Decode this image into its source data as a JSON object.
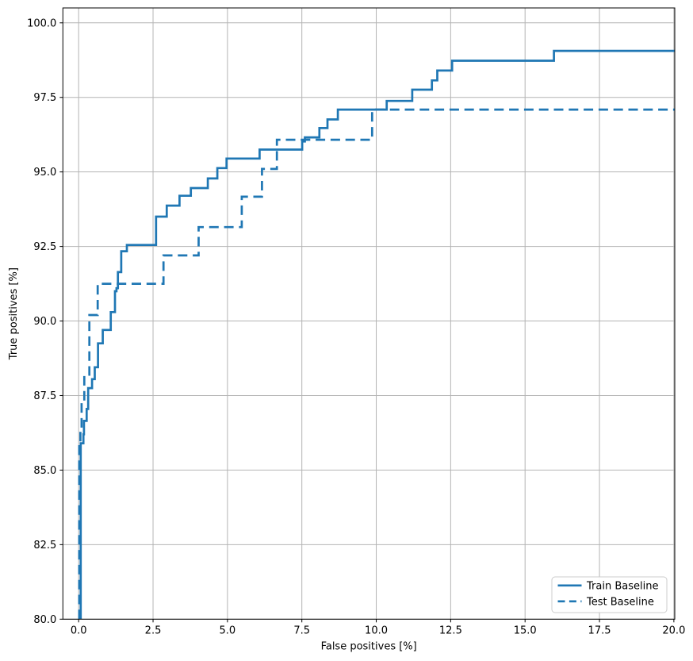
{
  "chart_data": {
    "type": "line",
    "title": "",
    "xlabel": "False positives [%]",
    "ylabel": "True positives [%]",
    "xlim": [
      -0.53,
      20.03
    ],
    "ylim": [
      80.0,
      100.5
    ],
    "grid": true,
    "legend_position": "lower right",
    "xticks": {
      "values": [
        0,
        2.5,
        5,
        7.5,
        10,
        12.5,
        15,
        17.5,
        20
      ],
      "labels": [
        "0.0",
        "2.5",
        "5.0",
        "7.5",
        "10.0",
        "12.5",
        "15.0",
        "17.5",
        "20.0"
      ]
    },
    "yticks": {
      "values": [
        80,
        82.5,
        85,
        87.5,
        90,
        92.5,
        95,
        97.5,
        100
      ],
      "labels": [
        "80.0",
        "82.5",
        "85.0",
        "87.5",
        "90.0",
        "92.5",
        "95.0",
        "97.5",
        "100.0"
      ]
    },
    "colors": {
      "line": "#1f77b4",
      "grid": "#b4b4b4",
      "axis": "#000000",
      "legend_border": "#cccccc",
      "background": "#ffffff"
    },
    "legend": {
      "entries": [
        {
          "label": "Train Baseline",
          "style": "solid"
        },
        {
          "label": "Test Baseline",
          "style": "dashed"
        }
      ]
    },
    "series": [
      {
        "name": "Train Baseline",
        "style": "solid",
        "step_vertices": [
          [
            0.07,
            80.0
          ],
          [
            0.07,
            85.9
          ],
          [
            0.16,
            85.9
          ],
          [
            0.16,
            86.2
          ],
          [
            0.18,
            86.2
          ],
          [
            0.18,
            86.65
          ],
          [
            0.27,
            86.65
          ],
          [
            0.27,
            87.05
          ],
          [
            0.32,
            87.05
          ],
          [
            0.32,
            87.75
          ],
          [
            0.45,
            87.75
          ],
          [
            0.45,
            88.05
          ],
          [
            0.54,
            88.05
          ],
          [
            0.54,
            88.45
          ],
          [
            0.65,
            88.45
          ],
          [
            0.65,
            89.25
          ],
          [
            0.81,
            89.25
          ],
          [
            0.81,
            89.7
          ],
          [
            1.08,
            89.7
          ],
          [
            1.08,
            90.3
          ],
          [
            1.22,
            90.3
          ],
          [
            1.22,
            91.0
          ],
          [
            1.27,
            91.0
          ],
          [
            1.27,
            91.1
          ],
          [
            1.32,
            91.1
          ],
          [
            1.32,
            91.64
          ],
          [
            1.43,
            91.64
          ],
          [
            1.43,
            92.34
          ],
          [
            1.62,
            92.34
          ],
          [
            1.62,
            92.55
          ],
          [
            2.6,
            92.55
          ],
          [
            2.6,
            93.5
          ],
          [
            2.96,
            93.5
          ],
          [
            2.96,
            93.87
          ],
          [
            3.39,
            93.87
          ],
          [
            3.39,
            94.2
          ],
          [
            3.77,
            94.2
          ],
          [
            3.77,
            94.46
          ],
          [
            4.34,
            94.46
          ],
          [
            4.34,
            94.78
          ],
          [
            4.66,
            94.78
          ],
          [
            4.66,
            95.13
          ],
          [
            4.97,
            95.13
          ],
          [
            4.97,
            95.45
          ],
          [
            6.08,
            95.45
          ],
          [
            6.08,
            95.75
          ],
          [
            7.51,
            95.75
          ],
          [
            7.51,
            96.02
          ],
          [
            7.6,
            96.02
          ],
          [
            7.6,
            96.16
          ],
          [
            8.09,
            96.16
          ],
          [
            8.09,
            96.47
          ],
          [
            8.36,
            96.47
          ],
          [
            8.36,
            96.76
          ],
          [
            8.71,
            96.76
          ],
          [
            8.71,
            97.09
          ],
          [
            10.35,
            97.09
          ],
          [
            10.35,
            97.38
          ],
          [
            11.21,
            97.38
          ],
          [
            11.21,
            97.76
          ],
          [
            11.87,
            97.76
          ],
          [
            11.87,
            98.07
          ],
          [
            12.05,
            98.07
          ],
          [
            12.05,
            98.4
          ],
          [
            12.55,
            98.4
          ],
          [
            12.55,
            98.73
          ],
          [
            15.97,
            98.73
          ],
          [
            15.97,
            99.06
          ],
          [
            20.03,
            99.06
          ]
        ]
      },
      {
        "name": "Test Baseline",
        "style": "dashed",
        "step_vertices": [
          [
            0.02,
            80.0
          ],
          [
            0.02,
            85.8
          ],
          [
            0.06,
            85.8
          ],
          [
            0.06,
            86.3
          ],
          [
            0.1,
            86.3
          ],
          [
            0.1,
            87.3
          ],
          [
            0.19,
            87.3
          ],
          [
            0.19,
            88.2
          ],
          [
            0.36,
            88.2
          ],
          [
            0.36,
            90.2
          ],
          [
            0.64,
            90.2
          ],
          [
            0.64,
            91.25
          ],
          [
            2.85,
            91.25
          ],
          [
            2.85,
            92.2
          ],
          [
            4.03,
            92.2
          ],
          [
            4.03,
            93.15
          ],
          [
            5.48,
            93.15
          ],
          [
            5.48,
            94.17
          ],
          [
            6.16,
            94.17
          ],
          [
            6.16,
            95.1
          ],
          [
            6.66,
            95.1
          ],
          [
            6.66,
            96.08
          ],
          [
            9.86,
            96.08
          ],
          [
            9.86,
            97.09
          ],
          [
            20.03,
            97.09
          ]
        ]
      }
    ]
  }
}
